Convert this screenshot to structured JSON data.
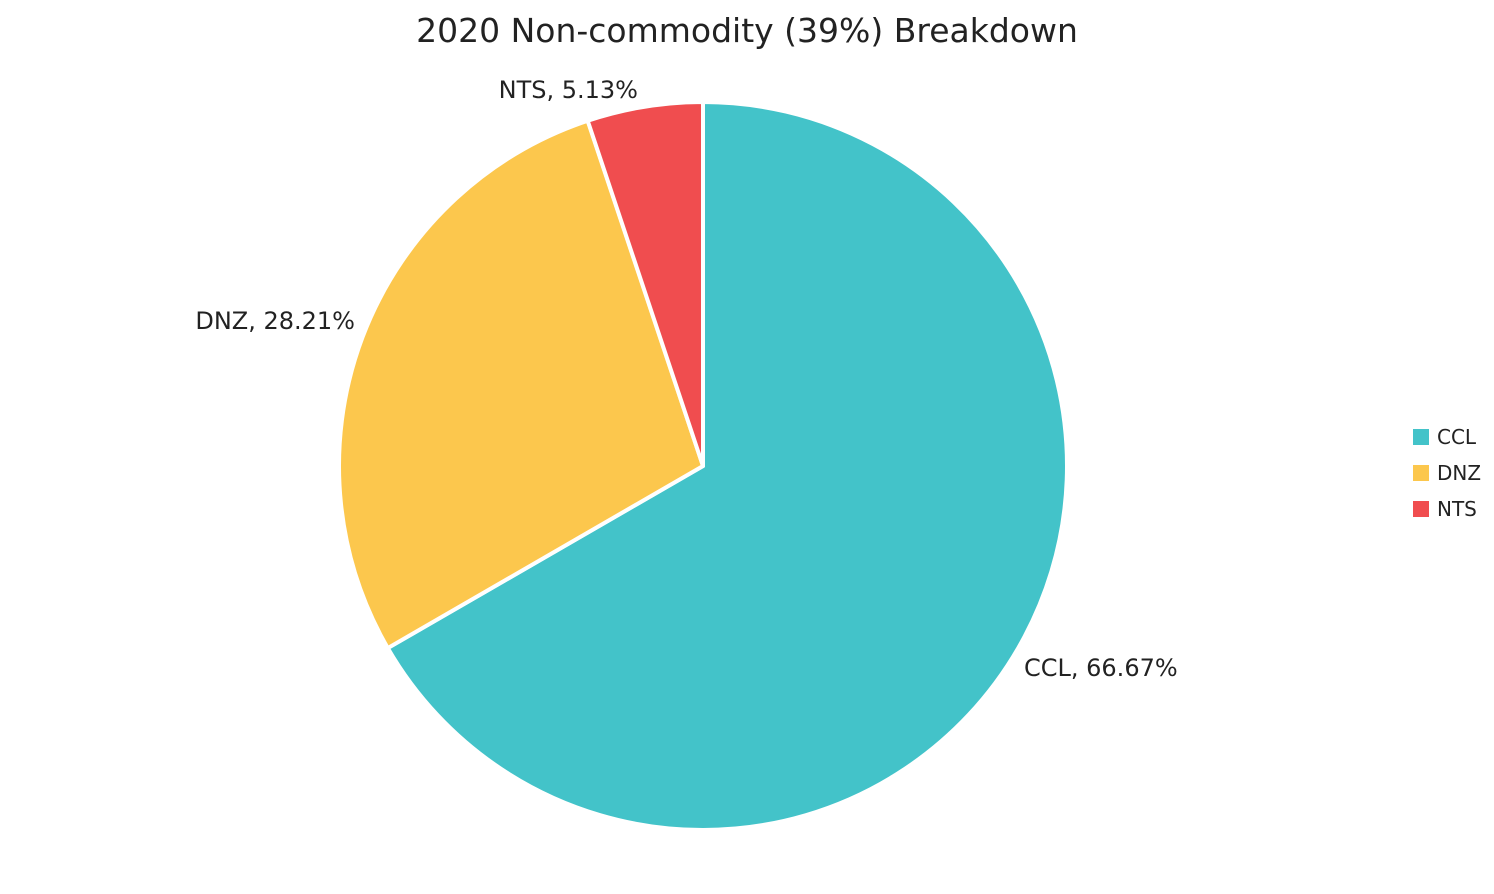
{
  "chart_data": {
    "type": "pie",
    "title": "2020 Non-commodity (39%) Breakdown",
    "slices": [
      {
        "name": "CCL",
        "value": 66.67,
        "label": "CCL, 66.67%",
        "color": "#43c3c9"
      },
      {
        "name": "DNZ",
        "value": 28.21,
        "label": "DNZ, 28.21%",
        "color": "#fcc74d"
      },
      {
        "name": "NTS",
        "value": 5.13,
        "label": "NTS, 5.13%",
        "color": "#f04d4f"
      }
    ],
    "legend_position": "right",
    "start_angle": "12 o'clock",
    "direction": "clockwise"
  }
}
